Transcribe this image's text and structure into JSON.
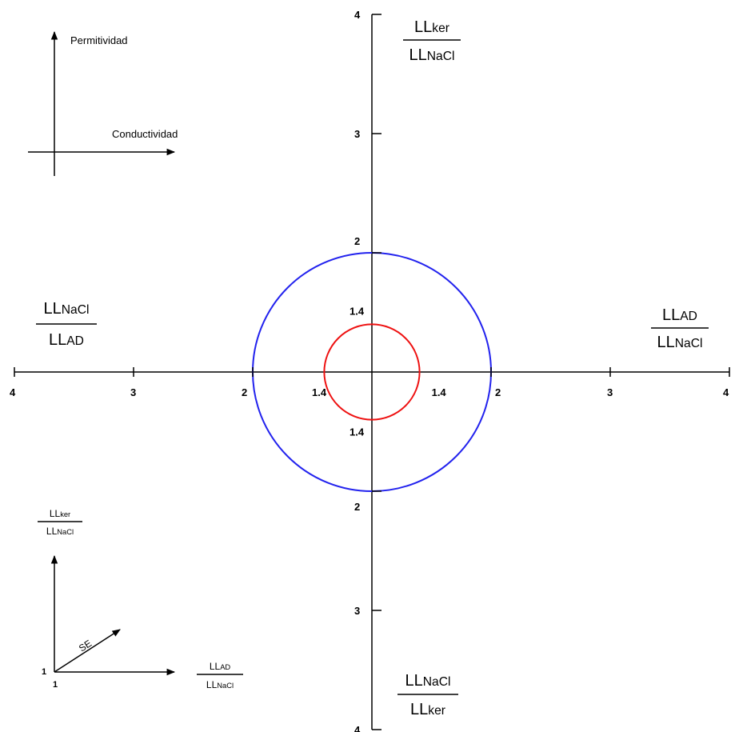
{
  "ticks": [
    2,
    3,
    4
  ],
  "circles": [
    {
      "value": 2,
      "color": "#2222ee"
    },
    {
      "value": 1.4,
      "color": "#ee1111"
    }
  ],
  "circle_label": "1.4",
  "axis_labels": {
    "top": {
      "num": {
        "base": "LL",
        "sub": "ker"
      },
      "den": {
        "base": "LL",
        "sub": "NaCl"
      }
    },
    "right": {
      "num": {
        "base": "LL",
        "sub": "AD"
      },
      "den": {
        "base": "LL",
        "sub": "NaCl"
      }
    },
    "bottom": {
      "num": {
        "base": "LL",
        "sub": "NaCl"
      },
      "den": {
        "base": "LL",
        "sub": "ker"
      }
    },
    "left": {
      "num": {
        "base": "LL",
        "sub": "NaCl"
      },
      "den": {
        "base": "LL",
        "sub": "AD"
      }
    }
  },
  "legend": {
    "y_label": "Permitividad",
    "x_label": "Conductividad"
  },
  "inset": {
    "y_label": {
      "num": {
        "base": "LL",
        "sub": "ker"
      },
      "den": {
        "base": "LL",
        "sub": "NaCl"
      }
    },
    "x_label": {
      "num": {
        "base": "LL",
        "sub": "AD"
      },
      "den": {
        "base": "LL",
        "sub": "NaCl"
      }
    },
    "origin_y": "1",
    "origin_x": "1",
    "vector": "SE"
  }
}
